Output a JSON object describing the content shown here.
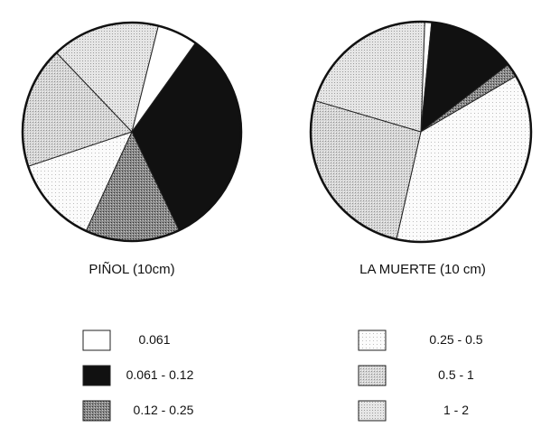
{
  "chart_data": [
    {
      "type": "pie",
      "title": "PIÑOL (10cm)",
      "categories": [
        "0.061",
        "0.061 - 0.12",
        "0.12 - 0.25",
        "0.25 - 0.5",
        "0.5 - 1",
        "1 - 2"
      ],
      "values": [
        6,
        33,
        14,
        13,
        18,
        16
      ]
    },
    {
      "type": "pie",
      "title": "LA MUERTE (10 cm)",
      "categories": [
        "0.061",
        "0.061 - 0.12",
        "0.12 - 0.25",
        "0.25 - 0.5",
        "0.5 - 1",
        "1 - 2"
      ],
      "values": [
        1,
        13,
        2,
        37,
        26,
        21
      ]
    }
  ],
  "legend": {
    "items": [
      "0.061",
      "0.061 - 0.12",
      "0.12 - 0.25",
      "0.25 - 0.5",
      "0.5 - 1",
      "1 - 2"
    ]
  },
  "colors": {
    "c0": "#ffffff",
    "c1": "#111111",
    "c2": "#7e7e7e",
    "c3": "#f4f4f4",
    "c4": "#c9c9c9",
    "c5": "#dcdcdc"
  }
}
